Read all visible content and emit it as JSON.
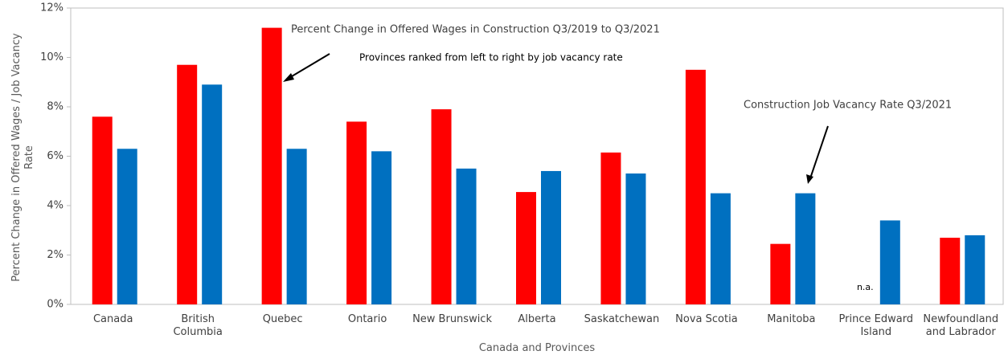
{
  "chart_data": {
    "type": "bar",
    "annotations": [
      "Provinces ranked from left to right by job vacancy rate"
    ],
    "x_label": "Canada and Provinces",
    "y_label": "Percent Change in Offered Wages / Job Vacancy\nRate",
    "categories": [
      "Canada",
      "British\nColumbia",
      "Quebec",
      "Ontario",
      "New Brunswick",
      "Alberta",
      "Saskatchewan",
      "Nova Scotia",
      "Manitoba",
      "Prince Edward\nIsland",
      "Newfoundland\nand Labrador"
    ],
    "series": [
      {
        "name": "Percent Change in Offered Wages in Construction Q3/2019 to Q3/2021",
        "color": "#ff0000",
        "values": [
          7.6,
          9.7,
          11.2,
          7.4,
          7.9,
          4.55,
          6.15,
          9.5,
          2.45,
          null,
          2.7
        ],
        "value_labels": [
          null,
          null,
          null,
          null,
          null,
          null,
          null,
          null,
          null,
          "n.a.",
          null
        ]
      },
      {
        "name": "Construction Job Vacancy Rate Q3/2021",
        "color": "#0070c0",
        "values": [
          6.3,
          8.9,
          6.3,
          6.2,
          5.5,
          5.4,
          5.3,
          4.5,
          4.5,
          3.4,
          2.8
        ]
      }
    ],
    "ylim": [
      0,
      12
    ],
    "yticks": [
      {
        "value": 0,
        "label": "0%"
      },
      {
        "value": 2,
        "label": "2%"
      },
      {
        "value": 4,
        "label": "4%"
      },
      {
        "value": 6,
        "label": "6%"
      },
      {
        "value": 8,
        "label": "8%"
      },
      {
        "value": 10,
        "label": "10%"
      },
      {
        "value": 12,
        "label": "12%"
      }
    ],
    "grid": false
  }
}
